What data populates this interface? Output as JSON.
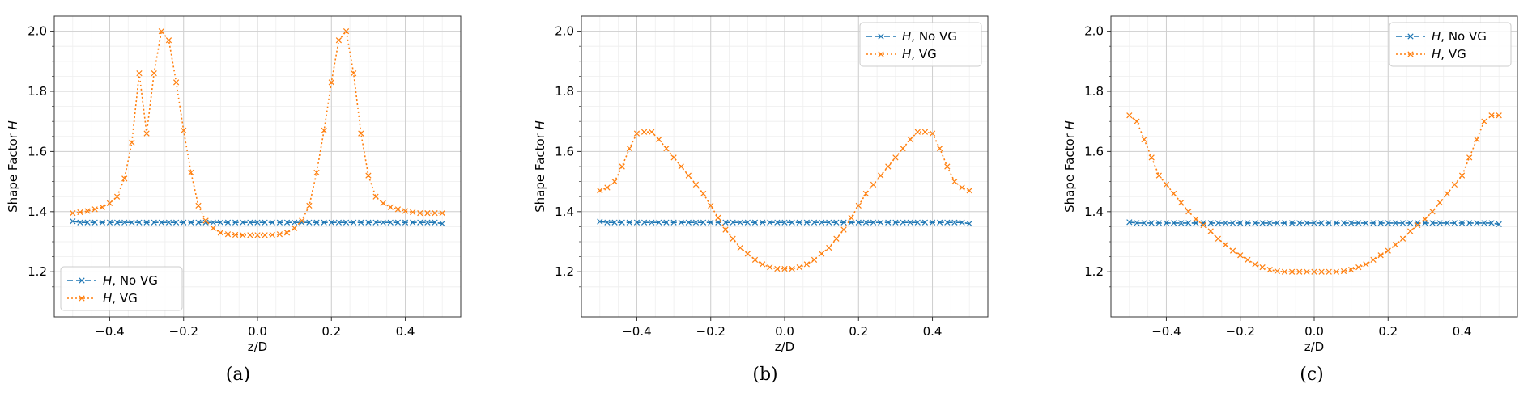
{
  "figure": {
    "captions": [
      "(a)",
      "(b)",
      "(c)"
    ]
  },
  "style": {
    "no_vg_color": "#1f77b4",
    "vg_color": "#ff7f0e",
    "grid_major": "#cfcfcf",
    "grid_minor": "#eeeeee"
  },
  "chart_data": [
    {
      "type": "line",
      "caption": "(a)",
      "xlabel": "z/D",
      "ylabel": "Shape Factor H",
      "xlim": [
        -0.55,
        0.55
      ],
      "ylim": [
        1.05,
        2.05
      ],
      "xticks": [
        "−0.4",
        "−0.2",
        "0.0",
        "0.2",
        "0.4"
      ],
      "xtick_values": [
        -0.4,
        -0.2,
        0.0,
        0.2,
        0.4
      ],
      "yticks": [
        "1.2",
        "1.4",
        "1.6",
        "1.8",
        "2.0"
      ],
      "ytick_values": [
        1.2,
        1.4,
        1.6,
        1.8,
        2.0
      ],
      "grid": true,
      "legend_position": "lower-left",
      "x": [
        -0.5,
        -0.48,
        -0.46,
        -0.44,
        -0.42,
        -0.4,
        -0.38,
        -0.36,
        -0.34,
        -0.32,
        -0.3,
        -0.28,
        -0.26,
        -0.24,
        -0.22,
        -0.2,
        -0.18,
        -0.16,
        -0.14,
        -0.12,
        -0.1,
        -0.08,
        -0.06,
        -0.04,
        -0.02,
        0.0,
        0.02,
        0.04,
        0.06,
        0.08,
        0.1,
        0.12,
        0.14,
        0.16,
        0.18,
        0.2,
        0.22,
        0.24,
        0.26,
        0.28,
        0.3,
        0.32,
        0.34,
        0.36,
        0.38,
        0.4,
        0.42,
        0.44,
        0.46,
        0.48,
        0.5
      ],
      "series": [
        {
          "name": "H, No VG",
          "line": "dashed",
          "values": [
            1.368,
            1.364,
            1.364,
            1.364,
            1.364,
            1.364,
            1.364,
            1.364,
            1.364,
            1.364,
            1.364,
            1.364,
            1.364,
            1.364,
            1.364,
            1.364,
            1.364,
            1.364,
            1.364,
            1.364,
            1.364,
            1.364,
            1.364,
            1.364,
            1.364,
            1.364,
            1.364,
            1.364,
            1.364,
            1.364,
            1.364,
            1.364,
            1.364,
            1.364,
            1.364,
            1.364,
            1.364,
            1.364,
            1.364,
            1.364,
            1.364,
            1.364,
            1.364,
            1.364,
            1.364,
            1.364,
            1.364,
            1.364,
            1.364,
            1.364,
            1.36
          ]
        },
        {
          "name": "H, VG",
          "line": "dotted",
          "values": [
            1.395,
            1.398,
            1.402,
            1.408,
            1.415,
            1.428,
            1.45,
            1.51,
            1.63,
            1.86,
            1.66,
            1.86,
            2.0,
            1.97,
            1.83,
            1.67,
            1.53,
            1.42,
            1.37,
            1.345,
            1.33,
            1.325,
            1.323,
            1.322,
            1.322,
            1.322,
            1.322,
            1.323,
            1.325,
            1.33,
            1.345,
            1.37,
            1.42,
            1.53,
            1.67,
            1.83,
            1.97,
            2.0,
            1.86,
            1.66,
            1.52,
            1.45,
            1.428,
            1.415,
            1.408,
            1.402,
            1.398,
            1.395,
            1.395,
            1.395,
            1.395
          ]
        }
      ]
    },
    {
      "type": "line",
      "caption": "(b)",
      "xlabel": "z/D",
      "ylabel": "Shape Factor H",
      "xlim": [
        -0.55,
        0.55
      ],
      "ylim": [
        1.05,
        2.05
      ],
      "xticks": [
        "−0.4",
        "−0.2",
        "0.0",
        "0.2",
        "0.4"
      ],
      "xtick_values": [
        -0.4,
        -0.2,
        0.0,
        0.2,
        0.4
      ],
      "yticks": [
        "1.2",
        "1.4",
        "1.6",
        "1.8",
        "2.0"
      ],
      "ytick_values": [
        1.2,
        1.4,
        1.6,
        1.8,
        2.0
      ],
      "grid": true,
      "legend_position": "upper-right",
      "x": [
        -0.5,
        -0.48,
        -0.46,
        -0.44,
        -0.42,
        -0.4,
        -0.38,
        -0.36,
        -0.34,
        -0.32,
        -0.3,
        -0.28,
        -0.26,
        -0.24,
        -0.22,
        -0.2,
        -0.18,
        -0.16,
        -0.14,
        -0.12,
        -0.1,
        -0.08,
        -0.06,
        -0.04,
        -0.02,
        0.0,
        0.02,
        0.04,
        0.06,
        0.08,
        0.1,
        0.12,
        0.14,
        0.16,
        0.18,
        0.2,
        0.22,
        0.24,
        0.26,
        0.28,
        0.3,
        0.32,
        0.34,
        0.36,
        0.38,
        0.4,
        0.42,
        0.44,
        0.46,
        0.48,
        0.5
      ],
      "series": [
        {
          "name": "H, No VG",
          "line": "dashed",
          "values": [
            1.367,
            1.364,
            1.364,
            1.364,
            1.364,
            1.364,
            1.364,
            1.364,
            1.364,
            1.364,
            1.364,
            1.364,
            1.364,
            1.364,
            1.364,
            1.364,
            1.364,
            1.364,
            1.364,
            1.364,
            1.364,
            1.364,
            1.364,
            1.364,
            1.364,
            1.364,
            1.364,
            1.364,
            1.364,
            1.364,
            1.364,
            1.364,
            1.364,
            1.364,
            1.364,
            1.364,
            1.364,
            1.364,
            1.364,
            1.364,
            1.364,
            1.364,
            1.364,
            1.364,
            1.364,
            1.364,
            1.364,
            1.364,
            1.364,
            1.364,
            1.36
          ]
        },
        {
          "name": "H, VG",
          "line": "dotted",
          "values": [
            1.47,
            1.48,
            1.5,
            1.55,
            1.61,
            1.66,
            1.665,
            1.665,
            1.64,
            1.61,
            1.58,
            1.55,
            1.52,
            1.49,
            1.46,
            1.42,
            1.38,
            1.34,
            1.31,
            1.28,
            1.26,
            1.24,
            1.225,
            1.215,
            1.21,
            1.21,
            1.21,
            1.215,
            1.225,
            1.24,
            1.26,
            1.28,
            1.31,
            1.34,
            1.38,
            1.42,
            1.46,
            1.49,
            1.52,
            1.55,
            1.58,
            1.61,
            1.64,
            1.665,
            1.665,
            1.66,
            1.61,
            1.55,
            1.5,
            1.48,
            1.47
          ]
        }
      ]
    },
    {
      "type": "line",
      "caption": "(c)",
      "xlabel": "z/D",
      "ylabel": "Shape Factor H",
      "xlim": [
        -0.55,
        0.55
      ],
      "ylim": [
        1.05,
        2.05
      ],
      "xticks": [
        "−0.4",
        "−0.2",
        "0.0",
        "0.2",
        "0.4"
      ],
      "xtick_values": [
        -0.4,
        -0.2,
        0.0,
        0.2,
        0.4
      ],
      "yticks": [
        "1.2",
        "1.4",
        "1.6",
        "1.8",
        "2.0"
      ],
      "ytick_values": [
        1.2,
        1.4,
        1.6,
        1.8,
        2.0
      ],
      "grid": true,
      "legend_position": "upper-right",
      "x": [
        -0.5,
        -0.48,
        -0.46,
        -0.44,
        -0.42,
        -0.4,
        -0.38,
        -0.36,
        -0.34,
        -0.32,
        -0.3,
        -0.28,
        -0.26,
        -0.24,
        -0.22,
        -0.2,
        -0.18,
        -0.16,
        -0.14,
        -0.12,
        -0.1,
        -0.08,
        -0.06,
        -0.04,
        -0.02,
        0.0,
        0.02,
        0.04,
        0.06,
        0.08,
        0.1,
        0.12,
        0.14,
        0.16,
        0.18,
        0.2,
        0.22,
        0.24,
        0.26,
        0.28,
        0.3,
        0.32,
        0.34,
        0.36,
        0.38,
        0.4,
        0.42,
        0.44,
        0.46,
        0.48,
        0.5
      ],
      "series": [
        {
          "name": "H, No VG",
          "line": "dashed",
          "values": [
            1.365,
            1.362,
            1.362,
            1.362,
            1.362,
            1.362,
            1.362,
            1.362,
            1.362,
            1.362,
            1.362,
            1.362,
            1.362,
            1.362,
            1.362,
            1.362,
            1.362,
            1.362,
            1.362,
            1.362,
            1.362,
            1.362,
            1.362,
            1.362,
            1.362,
            1.362,
            1.362,
            1.362,
            1.362,
            1.362,
            1.362,
            1.362,
            1.362,
            1.362,
            1.362,
            1.362,
            1.362,
            1.362,
            1.362,
            1.362,
            1.362,
            1.362,
            1.362,
            1.362,
            1.362,
            1.362,
            1.362,
            1.362,
            1.362,
            1.362,
            1.358
          ]
        },
        {
          "name": "H, VG",
          "line": "dotted",
          "values": [
            1.72,
            1.7,
            1.64,
            1.58,
            1.52,
            1.49,
            1.46,
            1.43,
            1.4,
            1.375,
            1.355,
            1.335,
            1.31,
            1.29,
            1.27,
            1.255,
            1.24,
            1.225,
            1.215,
            1.207,
            1.202,
            1.2,
            1.2,
            1.2,
            1.2,
            1.2,
            1.2,
            1.2,
            1.2,
            1.202,
            1.207,
            1.215,
            1.225,
            1.24,
            1.255,
            1.27,
            1.29,
            1.31,
            1.335,
            1.355,
            1.375,
            1.4,
            1.43,
            1.46,
            1.49,
            1.52,
            1.58,
            1.64,
            1.7,
            1.72,
            1.72
          ]
        }
      ]
    }
  ]
}
